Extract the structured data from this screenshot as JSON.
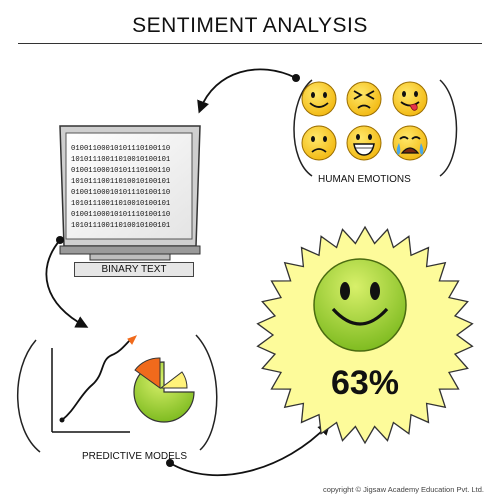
{
  "title": "SENTIMENT ANALYSIS",
  "labels": {
    "human_emotions": "HUMAN EMOTIONS",
    "binary_text": "BINARY TEXT",
    "predictive_models": "PREDICTIVE MODELS"
  },
  "binary_lines": [
    "01001100010101110100110",
    "10101110011010010100101",
    "01001100010101110100110",
    "10101110011010010100101",
    "01001100010101110100110",
    "10101110011010010100101",
    "01001100010101110100110",
    "10101110011010010100101"
  ],
  "result": {
    "percent": "63%"
  },
  "emotions": [
    "happy-face-icon",
    "angry-face-icon",
    "silly-face-icon",
    "sad-face-icon",
    "grinning-face-icon",
    "crying-face-icon"
  ],
  "colors": {
    "face_yellow": "#f5c518",
    "sun_yellow": "#fdfb9a",
    "smiley_green": "#9bd32a",
    "pie_orange": "#f06a1c"
  },
  "copyright": "copyright © Jigsaw Academy Education Pvt. Ltd."
}
